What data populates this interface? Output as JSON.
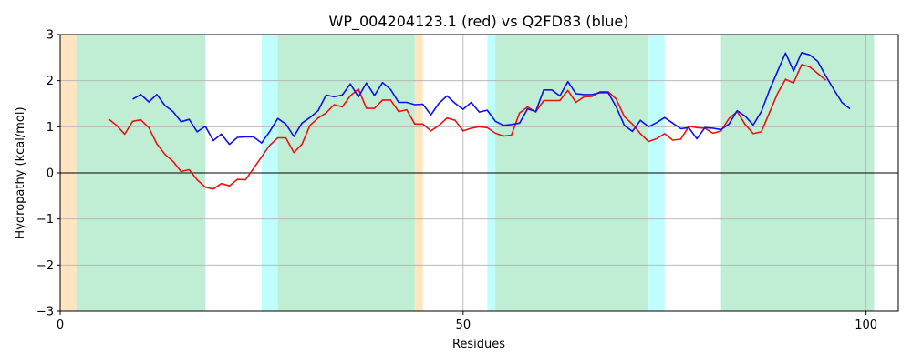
{
  "chart_data": {
    "type": "line",
    "title": "WP_004204123.1 (red) vs Q2FD83 (blue)",
    "xlabel": "Residues",
    "ylabel": "Hydropathy (kcal/mol)",
    "xlim": [
      0,
      104
    ],
    "ylim": [
      -3,
      3
    ],
    "xticks": [
      0,
      50,
      100
    ],
    "yticks": [
      -3,
      -2,
      -1,
      0,
      1,
      2,
      3
    ],
    "grid": true,
    "regions": [
      {
        "start": 0,
        "end": 2,
        "color": "#ffe4c0"
      },
      {
        "start": 2,
        "end": 18,
        "color": "#c0eed4"
      },
      {
        "start": 25,
        "end": 27,
        "color": "#c0fefe"
      },
      {
        "start": 27,
        "end": 44,
        "color": "#c0eed4"
      },
      {
        "start": 44,
        "end": 45,
        "color": "#ffe4c0"
      },
      {
        "start": 53,
        "end": 54,
        "color": "#c0fefe"
      },
      {
        "start": 54,
        "end": 73,
        "color": "#c0eed4"
      },
      {
        "start": 73,
        "end": 75,
        "color": "#c0fefe"
      },
      {
        "start": 82,
        "end": 101,
        "color": "#c0eed4"
      }
    ],
    "series": [
      {
        "color": "#ee1111",
        "x": [
          6,
          7,
          8,
          9,
          10,
          11,
          12,
          13,
          14,
          15,
          16,
          17,
          18,
          19,
          20,
          21,
          22,
          23,
          24,
          25,
          26,
          27,
          28,
          29,
          30,
          31,
          32,
          33,
          34,
          35,
          36,
          37,
          38,
          39,
          40,
          41,
          42,
          43,
          44,
          45,
          46,
          47,
          48,
          49,
          50,
          51,
          52,
          53,
          54,
          55,
          56,
          57,
          58,
          59,
          60,
          61,
          62,
          63,
          64,
          65,
          66,
          67,
          68,
          69,
          70,
          71,
          72,
          73,
          74,
          75,
          76,
          77,
          78,
          79,
          80,
          81,
          82,
          83,
          84,
          85,
          86,
          87,
          88,
          89,
          90,
          91,
          92,
          93,
          94,
          95
        ],
        "values": [
          1.17,
          1.03,
          0.84,
          1.12,
          1.15,
          0.98,
          0.63,
          0.4,
          0.25,
          0.03,
          0.07,
          -0.15,
          -0.31,
          -0.35,
          -0.23,
          -0.28,
          -0.14,
          -0.15,
          0.1,
          0.35,
          0.6,
          0.76,
          0.76,
          0.44,
          0.62,
          1.03,
          1.19,
          1.3,
          1.48,
          1.43,
          1.67,
          1.82,
          1.4,
          1.4,
          1.58,
          1.58,
          1.33,
          1.37,
          1.06,
          1.06,
          0.91,
          1.03,
          1.19,
          1.14,
          0.91,
          0.97,
          1.0,
          0.98,
          0.86,
          0.8,
          0.82,
          1.3,
          1.43,
          1.32,
          1.57,
          1.57,
          1.57,
          1.79,
          1.53,
          1.65,
          1.66,
          1.76,
          1.76,
          1.6,
          1.22,
          1.06,
          0.85,
          0.68,
          0.74,
          0.85,
          0.71,
          0.73,
          1.01,
          0.98,
          0.97,
          0.86,
          0.91,
          1.18,
          1.33,
          1.05,
          0.85,
          0.89,
          1.3,
          1.72,
          2.03,
          1.95,
          2.35,
          2.3,
          2.16,
          2.01
        ]
      },
      {
        "color": "#1111ee",
        "x": [
          9,
          10,
          11,
          12,
          13,
          14,
          15,
          16,
          17,
          18,
          19,
          20,
          21,
          22,
          23,
          24,
          25,
          26,
          27,
          28,
          29,
          30,
          31,
          32,
          33,
          34,
          35,
          36,
          37,
          38,
          39,
          40,
          41,
          42,
          43,
          44,
          45,
          46,
          47,
          48,
          49,
          50,
          51,
          52,
          53,
          54,
          55,
          56,
          57,
          58,
          59,
          60,
          61,
          62,
          63,
          64,
          65,
          66,
          67,
          68,
          69,
          70,
          71,
          72,
          73,
          74,
          75,
          76,
          77,
          78,
          79,
          80,
          81,
          82,
          83,
          84,
          85,
          86,
          87,
          88,
          89,
          90,
          91,
          92,
          93,
          94,
          95,
          96,
          97,
          98
        ],
        "values": [
          1.6,
          1.7,
          1.54,
          1.7,
          1.46,
          1.33,
          1.11,
          1.16,
          0.89,
          1.01,
          0.7,
          0.84,
          0.62,
          0.77,
          0.78,
          0.78,
          0.65,
          0.9,
          1.18,
          1.06,
          0.79,
          1.08,
          1.2,
          1.35,
          1.69,
          1.65,
          1.69,
          1.93,
          1.65,
          1.95,
          1.68,
          1.96,
          1.81,
          1.53,
          1.53,
          1.48,
          1.49,
          1.26,
          1.51,
          1.67,
          1.51,
          1.38,
          1.53,
          1.32,
          1.36,
          1.12,
          1.03,
          1.05,
          1.08,
          1.39,
          1.33,
          1.8,
          1.8,
          1.67,
          1.98,
          1.72,
          1.7,
          1.7,
          1.74,
          1.74,
          1.43,
          1.03,
          0.9,
          1.14,
          1.0,
          1.09,
          1.2,
          1.08,
          0.96,
          0.98,
          0.74,
          0.98,
          0.97,
          0.94,
          1.06,
          1.35,
          1.23,
          1.04,
          1.33,
          1.79,
          2.2,
          2.6,
          2.21,
          2.61,
          2.56,
          2.42,
          2.1,
          1.81,
          1.53,
          1.39
        ]
      }
    ]
  }
}
